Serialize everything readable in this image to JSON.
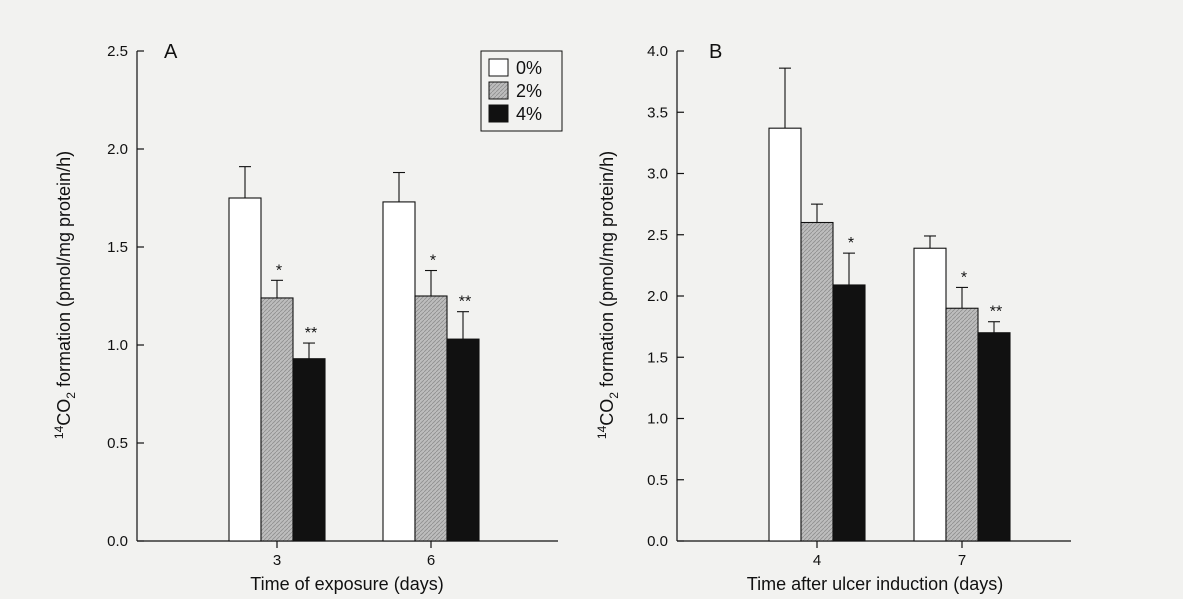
{
  "legend": [
    {
      "label": "0%",
      "color": "#ffffff"
    },
    {
      "label": "2%",
      "color": "#b9b9b9"
    },
    {
      "label": "4%",
      "color": "#111111"
    }
  ],
  "chart_data": [
    {
      "type": "bar",
      "panel_label": "A",
      "title": "",
      "xlabel": "Time of exposure (days)",
      "ylabel_sup": "14",
      "ylabel_main": "CO",
      "ylabel_sub": "2",
      "ylabel_rest": " formation (pmol/mg protein/h)",
      "ylim": [
        0,
        2.5
      ],
      "yticks": [
        0.0,
        0.5,
        1.0,
        1.5,
        2.0,
        2.5
      ],
      "ytick_labels": [
        "0.0",
        "0.5",
        "1.0",
        "1.5",
        "2.0",
        "2.5"
      ],
      "categories": [
        "3",
        "6"
      ],
      "legend_position": "top-right",
      "series": [
        {
          "name": "0%",
          "values": [
            1.75,
            1.73
          ],
          "errors": [
            0.16,
            0.15
          ],
          "significance": [
            "",
            ""
          ]
        },
        {
          "name": "2%",
          "values": [
            1.24,
            1.25
          ],
          "errors": [
            0.09,
            0.13
          ],
          "significance": [
            "*",
            "*"
          ]
        },
        {
          "name": "4%",
          "values": [
            0.93,
            1.03
          ],
          "errors": [
            0.08,
            0.14
          ],
          "significance": [
            "**",
            "**"
          ]
        }
      ]
    },
    {
      "type": "bar",
      "panel_label": "B",
      "title": "",
      "xlabel": "Time after ulcer induction (days)",
      "ylabel_sup": "14",
      "ylabel_main": "CO",
      "ylabel_sub": "2",
      "ylabel_rest": " formation (pmol/mg protein/h)",
      "ylim": [
        0,
        4.0
      ],
      "yticks": [
        0.0,
        0.5,
        1.0,
        1.5,
        2.0,
        2.5,
        3.0,
        3.5,
        4.0
      ],
      "ytick_labels": [
        "0.0",
        "0.5",
        "1.0",
        "1.5",
        "2.0",
        "2.5",
        "3.0",
        "3.5",
        "4.0"
      ],
      "categories": [
        "4",
        "7"
      ],
      "series": [
        {
          "name": "0%",
          "values": [
            3.37,
            2.39
          ],
          "errors": [
            0.49,
            0.1
          ],
          "significance": [
            "",
            ""
          ]
        },
        {
          "name": "2%",
          "values": [
            2.6,
            1.9
          ],
          "errors": [
            0.15,
            0.17
          ],
          "significance": [
            "",
            "*"
          ]
        },
        {
          "name": "4%",
          "values": [
            2.09,
            1.7
          ],
          "errors": [
            0.26,
            0.09
          ],
          "significance": [
            "*",
            "**"
          ]
        }
      ]
    }
  ]
}
